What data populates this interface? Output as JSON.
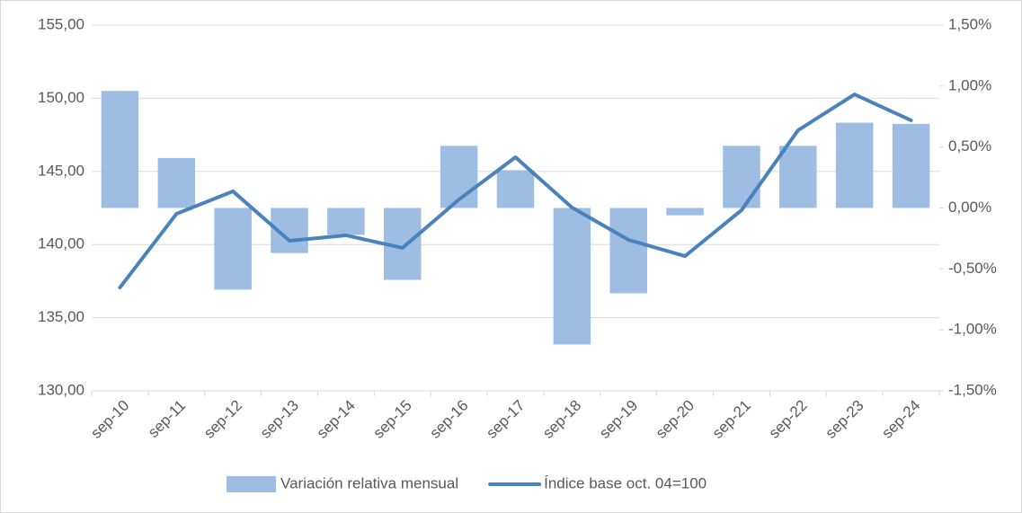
{
  "chart_data": {
    "type": "bar_line",
    "categories": [
      "sep-10",
      "sep-11",
      "sep-12",
      "sep-13",
      "sep-14",
      "sep-15",
      "sep-16",
      "sep-17",
      "sep-18",
      "sep-19",
      "sep-20",
      "sep-21",
      "sep-22",
      "sep-23",
      "sep-24"
    ],
    "series": [
      {
        "name": "Variación relativa mensual",
        "type": "bar",
        "axis": "y2",
        "color": "#9dbde3",
        "values": [
          0.96,
          0.41,
          -0.67,
          -0.37,
          -0.22,
          -0.59,
          0.51,
          0.31,
          -1.12,
          -0.7,
          -0.06,
          0.51,
          0.51,
          0.7,
          0.69
        ]
      },
      {
        "name": "Índice base oct. 04=100",
        "type": "line",
        "axis": "y",
        "color": "#4a82bb",
        "values": [
          137.06,
          142.1,
          143.64,
          140.26,
          140.63,
          139.77,
          143.08,
          145.97,
          142.53,
          140.32,
          139.21,
          142.35,
          147.81,
          150.27,
          148.49
        ]
      }
    ],
    "ylim": [
      130,
      155
    ],
    "yticks": [
      {
        "value": 130,
        "label": "130,00"
      },
      {
        "value": 135,
        "label": "135,00"
      },
      {
        "value": 140,
        "label": "140,00"
      },
      {
        "value": 145,
        "label": "145,00"
      },
      {
        "value": 150,
        "label": "150,00"
      },
      {
        "value": 155,
        "label": "155,00"
      }
    ],
    "y2lim": [
      -1.5,
      1.5
    ],
    "y2ticks": [
      {
        "value": -1.5,
        "label": "-1,50%"
      },
      {
        "value": -1,
        "label": "-1,00%"
      },
      {
        "value": -0.5,
        "label": "-0,50%"
      },
      {
        "value": 0,
        "label": "0,00%"
      },
      {
        "value": 0.5,
        "label": "0,50%"
      },
      {
        "value": 1,
        "label": "1,00%"
      },
      {
        "value": 1.5,
        "label": "1,50%"
      }
    ],
    "grid": true,
    "legend": "bottom"
  }
}
